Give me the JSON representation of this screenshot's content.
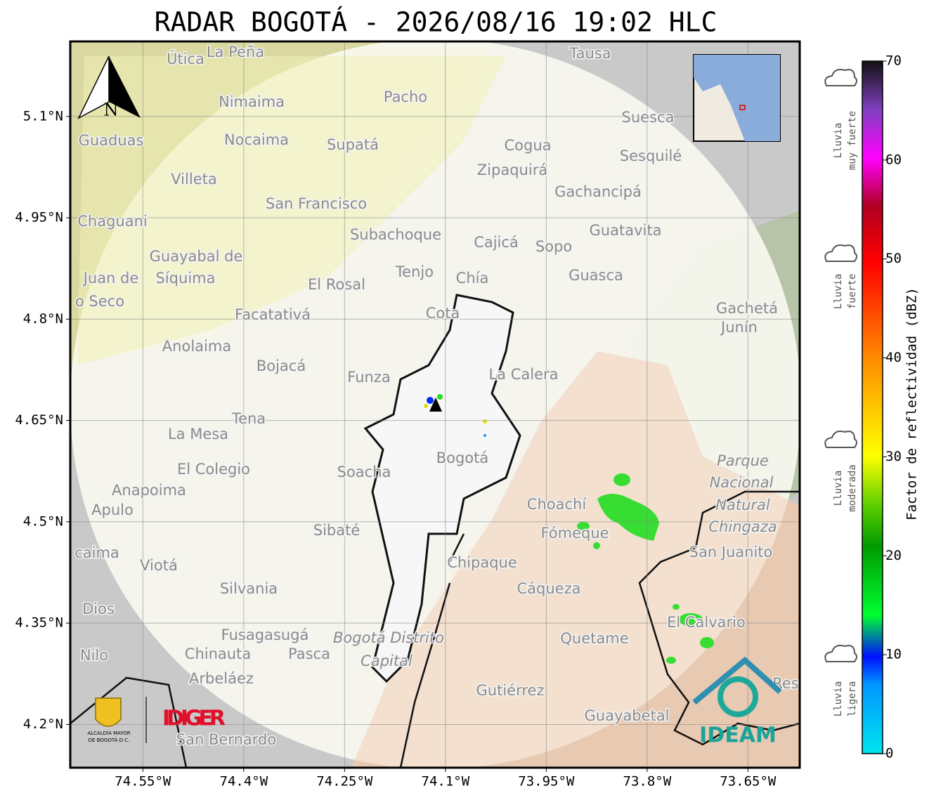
{
  "title": "RADAR BOGOTÁ - 2026/08/16 19:02 HLC",
  "map": {
    "xlim": [
      -74.658,
      -73.573
    ],
    "ylim": [
      4.136,
      5.211
    ],
    "xticks": [
      {
        "value": -74.55,
        "label": "74.55°W"
      },
      {
        "value": -74.4,
        "label": "74.4°W"
      },
      {
        "value": -74.25,
        "label": "74.25°W"
      },
      {
        "value": -74.1,
        "label": "74.1°W"
      },
      {
        "value": -73.95,
        "label": "73.95°W"
      },
      {
        "value": -73.8,
        "label": "73.8°W"
      },
      {
        "value": -73.65,
        "label": "73.65°W"
      }
    ],
    "yticks": [
      {
        "value": 5.1,
        "label": "5.1°N"
      },
      {
        "value": 4.95,
        "label": "4.95°N"
      },
      {
        "value": 4.8,
        "label": "4.8°N"
      },
      {
        "value": 4.65,
        "label": "4.65°N"
      },
      {
        "value": 4.5,
        "label": "4.5°N"
      },
      {
        "value": 4.35,
        "label": "4.35°N"
      },
      {
        "value": 4.2,
        "label": "4.2°N"
      }
    ],
    "north": "N",
    "places": [
      "Útica",
      "La Peña",
      "Tausa",
      "Pacho",
      "Nimaima",
      "Suesca",
      "Guaduas",
      "Nocaima",
      "Supatá",
      "Cogua",
      "Sesquilé",
      "Zipaquirá",
      "Villeta",
      "Gachancipá",
      "San Francisco",
      "Chaguani",
      "Guatavita",
      "Subachoque",
      "Cajicá",
      "Sopo",
      "Guayabal de",
      "Síquima",
      "Juan de",
      "Tenjo",
      "Chía",
      "Guasca",
      "El Rosal",
      "o Seco",
      "Facatativá",
      "Cota",
      "Gachetá",
      "Junín",
      "Anolaima",
      "Bojacá",
      "Funza",
      "La Calera",
      "Tena",
      "La Mesa",
      "Bogotá",
      "Soacha",
      "El Colegio",
      "Parque",
      "Nacional",
      "Natural",
      "Chingaza",
      "Anapoima",
      "Apulo",
      "Choachí",
      "Fómeque",
      "Sibaté",
      "San Juanito",
      "caima",
      "Viotá",
      "Chipaque",
      "Silvania",
      "Cáqueza",
      "Dios",
      "El Calvario",
      "Fusagasugá",
      "Quetame",
      "Bogotá Distrito",
      "Capital",
      "Nilo",
      "Chinauta",
      "Pasca",
      "Arbeláez",
      "Gutiérrez",
      "Guayabetal",
      "San Bernardo",
      "Res"
    ]
  },
  "logos": {
    "alcaldia": [
      "ALCALDÍA MAYOR",
      "DE BOGOTÁ D.C."
    ],
    "idiger": "IDIGER",
    "ideam": "IDEAM"
  },
  "colorbar": {
    "label": "Factor de reflectividad (dBZ)",
    "lim": [
      0,
      70
    ],
    "ticks": [
      0,
      10,
      20,
      30,
      40,
      50,
      60,
      70
    ],
    "categories": [
      [
        "Lluvia",
        "muy fuerte"
      ],
      [
        "Lluvia",
        "fuerte"
      ],
      [
        "Lluvia",
        "moderada"
      ],
      [
        "Lluvia",
        "ligera"
      ]
    ]
  }
}
